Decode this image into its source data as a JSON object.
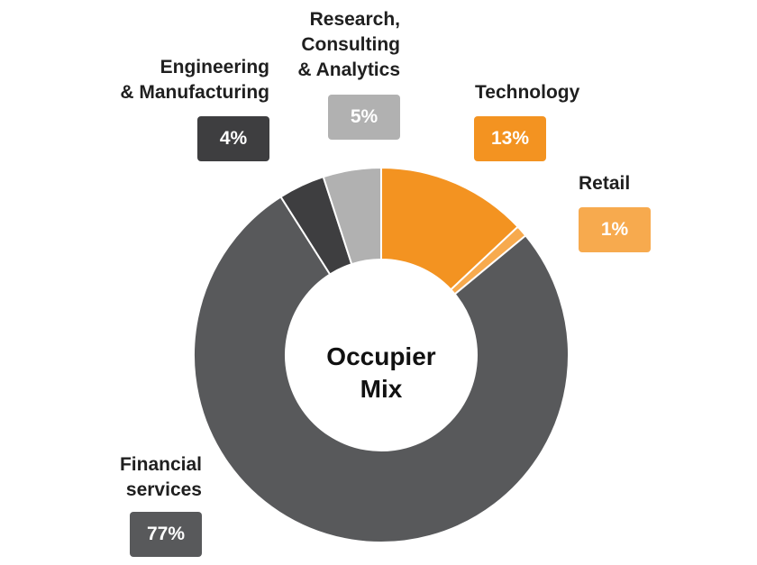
{
  "chart_data": {
    "type": "pie",
    "variant": "donut",
    "title": "Occupier Mix",
    "categories": [
      "Technology",
      "Retail",
      "Financial services",
      "Engineering & Manufacturing",
      "Research, Consulting & Analytics"
    ],
    "values": [
      13,
      1,
      77,
      4,
      5
    ],
    "value_labels": [
      "13%",
      "1%",
      "77%",
      "4%",
      "5%"
    ],
    "colors": [
      "#f39321",
      "#f7aa4e",
      "#58595b",
      "#3e3e40",
      "#b1b1b1"
    ],
    "label_text": [
      "Technology",
      "Retail",
      "Financial\nservices",
      "Engineering\n& Manufacturing",
      "Research,\nConsulting\n& Analytics"
    ],
    "center_text": "Occupier\nMix"
  }
}
